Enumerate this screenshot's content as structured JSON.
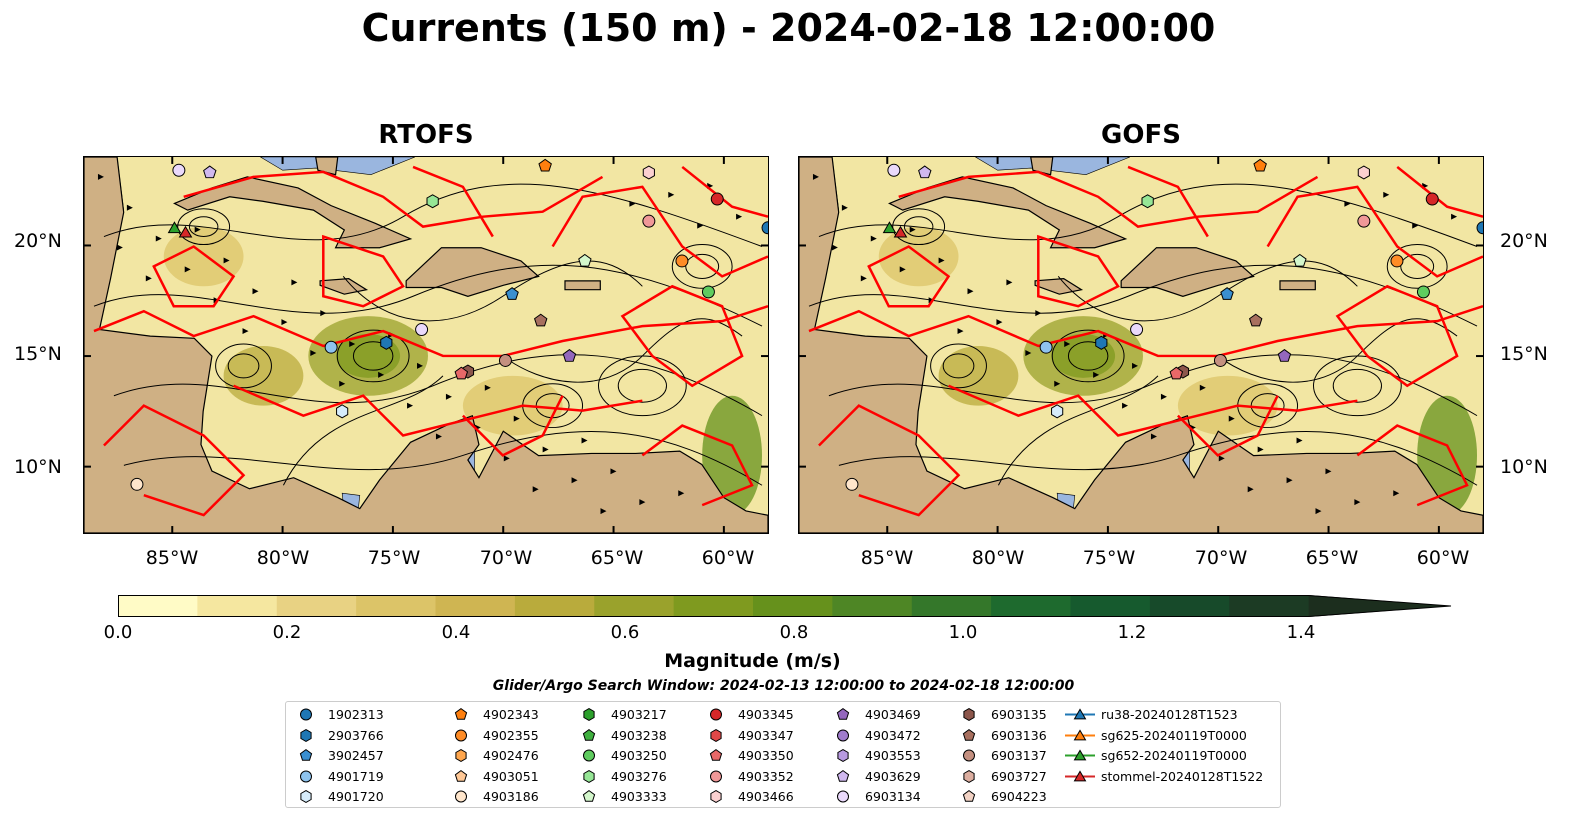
{
  "title": "Currents (150 m) - 2024-02-18 12:00:00",
  "panels": [
    {
      "title": "RTOFS"
    },
    {
      "title": "GOFS"
    }
  ],
  "lat_labels": [
    "20°N",
    "15°N",
    "10°N"
  ],
  "lon_labels": [
    "85°W",
    "80°W",
    "75°W",
    "70°W",
    "65°W",
    "60°W"
  ],
  "colorbar": {
    "label": "Magnitude (m/s)",
    "ticks": [
      "0.0",
      "0.2",
      "0.4",
      "0.6",
      "0.8",
      "1.0",
      "1.2",
      "1.4"
    ],
    "range": [
      0.0,
      1.5
    ],
    "extend": "max",
    "colors": [
      "#fffbc6",
      "#f5e7a0",
      "#e8d283",
      "#dcc468",
      "#cfb552",
      "#b9ab3c",
      "#9aa22c",
      "#7f9a1f",
      "#66911c",
      "#4e8625",
      "#34772a",
      "#1e6a2e",
      "#165a2e",
      "#174a2a",
      "#1c3b24",
      "#1c2e1e"
    ]
  },
  "search_window": "Glider/Argo Search Window: 2024-02-13 12:00:00 to 2024-02-18 12:00:00",
  "legend": [
    {
      "label": "1902313",
      "marker": "circle",
      "color": "#1f77b4"
    },
    {
      "label": "2903766",
      "marker": "hexagon",
      "color": "#1f77b4"
    },
    {
      "label": "3902457",
      "marker": "pentagon",
      "color": "#3a8fd0"
    },
    {
      "label": "4901719",
      "marker": "circle",
      "color": "#8ec3ee"
    },
    {
      "label": "4901720",
      "marker": "hexagon",
      "color": "#d6ecfb"
    },
    {
      "label": "4902343",
      "marker": "pentagon",
      "color": "#ff7f0e"
    },
    {
      "label": "4902355",
      "marker": "circle",
      "color": "#ff8c26"
    },
    {
      "label": "4902476",
      "marker": "hexagon",
      "color": "#ffa64d"
    },
    {
      "label": "4903051",
      "marker": "pentagon",
      "color": "#ffc896"
    },
    {
      "label": "4903186",
      "marker": "circle",
      "color": "#ffe6cc"
    },
    {
      "label": "4903217",
      "marker": "hexagon",
      "color": "#2ca02c"
    },
    {
      "label": "4903238",
      "marker": "pentagon",
      "color": "#3fb03f"
    },
    {
      "label": "4903250",
      "marker": "circle",
      "color": "#5fcc5f"
    },
    {
      "label": "4903276",
      "marker": "hexagon",
      "color": "#96e696"
    },
    {
      "label": "4903333",
      "marker": "pentagon",
      "color": "#d4f7cc"
    },
    {
      "label": "4903345",
      "marker": "circle",
      "color": "#d62728"
    },
    {
      "label": "4903347",
      "marker": "hexagon",
      "color": "#e04848"
    },
    {
      "label": "4903350",
      "marker": "pentagon",
      "color": "#e86868"
    },
    {
      "label": "4903352",
      "marker": "circle",
      "color": "#f09898"
    },
    {
      "label": "4903466",
      "marker": "hexagon",
      "color": "#fbd0d0"
    },
    {
      "label": "4903469",
      "marker": "pentagon",
      "color": "#9467bd"
    },
    {
      "label": "4903472",
      "marker": "circle",
      "color": "#a07ccc"
    },
    {
      "label": "4903553",
      "marker": "hexagon",
      "color": "#b89ae0"
    },
    {
      "label": "4903629",
      "marker": "pentagon",
      "color": "#d0b8ef"
    },
    {
      "label": "6903134",
      "marker": "circle",
      "color": "#ead9fb"
    },
    {
      "label": "6903135",
      "marker": "hexagon",
      "color": "#8c564b"
    },
    {
      "label": "6903136",
      "marker": "pentagon",
      "color": "#a8705f"
    },
    {
      "label": "6903137",
      "marker": "circle",
      "color": "#c49080"
    },
    {
      "label": "6903727",
      "marker": "hexagon",
      "color": "#dcaea0"
    },
    {
      "label": "6904223",
      "marker": "pentagon",
      "color": "#f2d2c4"
    },
    {
      "label": "ru38-20240128T1523",
      "marker": "triangle",
      "color": "#1f77b4",
      "line": true
    },
    {
      "label": "sg625-20240119T0000",
      "marker": "triangle",
      "color": "#ff7f0e",
      "line": true
    },
    {
      "label": "sg652-20240119T0000",
      "marker": "triangle",
      "color": "#2ca02c",
      "line": true
    },
    {
      "label": "stommel-20240128T1522",
      "marker": "triangle",
      "color": "#d62728",
      "line": true
    }
  ],
  "map_colors": {
    "ocean": "#f2e6a3",
    "land": "#cfb084",
    "water": "#9ab6df",
    "track": "#ff0000",
    "streamline": "#000000"
  },
  "floats_on_map": [
    {
      "id": "6903134",
      "lon": -84.7,
      "lat": 23.4
    },
    {
      "id": "4903629",
      "lon": -83.3,
      "lat": 23.3
    },
    {
      "id": "4902343",
      "lon": -68.1,
      "lat": 23.6
    },
    {
      "id": "4903466",
      "lon": -63.4,
      "lat": 23.3
    },
    {
      "id": "4903276",
      "lon": -73.2,
      "lat": 22.0
    },
    {
      "id": "4903352",
      "lon": -63.4,
      "lat": 21.1
    },
    {
      "id": "4903345",
      "lon": -60.3,
      "lat": 22.1
    },
    {
      "id": "1902313",
      "lon": -58.0,
      "lat": 20.8
    },
    {
      "id": "4902355",
      "lon": -61.9,
      "lat": 19.3
    },
    {
      "id": "4903333",
      "lon": -66.3,
      "lat": 19.3
    },
    {
      "id": "4903250",
      "lon": -60.7,
      "lat": 17.9
    },
    {
      "id": "3902457",
      "lon": -69.6,
      "lat": 17.8
    },
    {
      "id": "6903136",
      "lon": -68.3,
      "lat": 16.6
    },
    {
      "id": "4901719",
      "lon": -77.8,
      "lat": 15.4
    },
    {
      "id": "2903766",
      "lon": -75.3,
      "lat": 15.6
    },
    {
      "id": "6903134",
      "lon": -73.7,
      "lat": 16.2
    },
    {
      "id": "4903469",
      "lon": -67.0,
      "lat": 15.0
    },
    {
      "id": "6903137",
      "lon": -69.9,
      "lat": 14.8
    },
    {
      "id": "6903135",
      "lon": -71.6,
      "lat": 14.3
    },
    {
      "id": "4903350",
      "lon": -71.9,
      "lat": 14.2
    },
    {
      "id": "4901720",
      "lon": -77.3,
      "lat": 12.5
    },
    {
      "id": "4903186",
      "lon": -86.6,
      "lat": 9.2
    }
  ],
  "gliders_on_map": [
    {
      "id": "stommel-20240128T1522",
      "lon": -84.4,
      "lat": 20.6
    },
    {
      "id": "sg652-20240119T0000",
      "lon": -84.9,
      "lat": 20.8
    }
  ]
}
